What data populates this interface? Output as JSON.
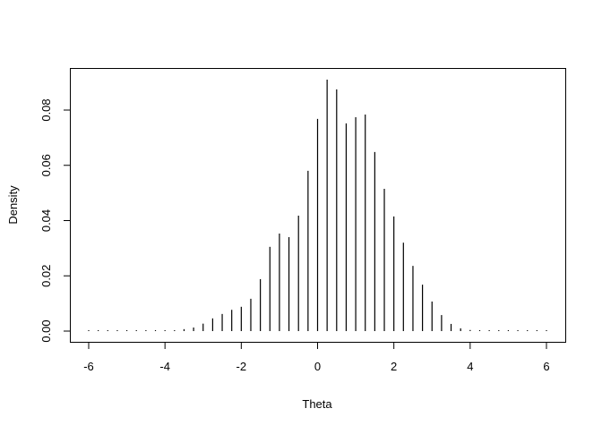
{
  "chart_data": {
    "type": "bar",
    "style": "vertical lines (histogram-like spikes)",
    "title": "",
    "xlabel": "Theta",
    "ylabel": "Density",
    "xlim": [
      -6.3,
      6.5
    ],
    "ylim": [
      -0.0036,
      0.0955
    ],
    "xticks": [
      "-6",
      "-4",
      "-2",
      "0",
      "2",
      "4",
      "6"
    ],
    "yticks": [
      "0.00",
      "0.02",
      "0.04",
      "0.06",
      "0.08"
    ],
    "grid": false,
    "legend": "none",
    "color": "#000000",
    "x": [
      -6,
      -5.75,
      -5.5,
      -5.25,
      -5,
      -4.75,
      -4.5,
      -4.25,
      -4,
      -3.75,
      -3.5,
      -3.25,
      -3,
      -2.75,
      -2.5,
      -2.25,
      -2,
      -1.75,
      -1.5,
      -1.25,
      -1,
      -0.75,
      -0.5,
      -0.25,
      0,
      0.25,
      0.5,
      0.75,
      1,
      1.25,
      1.5,
      1.75,
      2,
      2.25,
      2.5,
      2.75,
      3,
      3.25,
      3.5,
      3.75,
      4,
      4.25,
      4.5,
      4.75,
      5,
      5.25,
      5.5,
      5.75,
      6
    ],
    "values": [
      0,
      0,
      0,
      0,
      0,
      0,
      0,
      0,
      0.0001,
      0.0003,
      0.0007,
      0.0013,
      0.0027,
      0.0046,
      0.0062,
      0.0077,
      0.0088,
      0.0117,
      0.0188,
      0.0305,
      0.0353,
      0.034,
      0.0418,
      0.058,
      0.0768,
      0.091,
      0.0875,
      0.0752,
      0.0774,
      0.0784,
      0.0648,
      0.0515,
      0.0415,
      0.032,
      0.0236,
      0.0168,
      0.0107,
      0.0058,
      0.0026,
      0.001,
      0.0004,
      0,
      0,
      0,
      0,
      0,
      0,
      0,
      0
    ]
  }
}
